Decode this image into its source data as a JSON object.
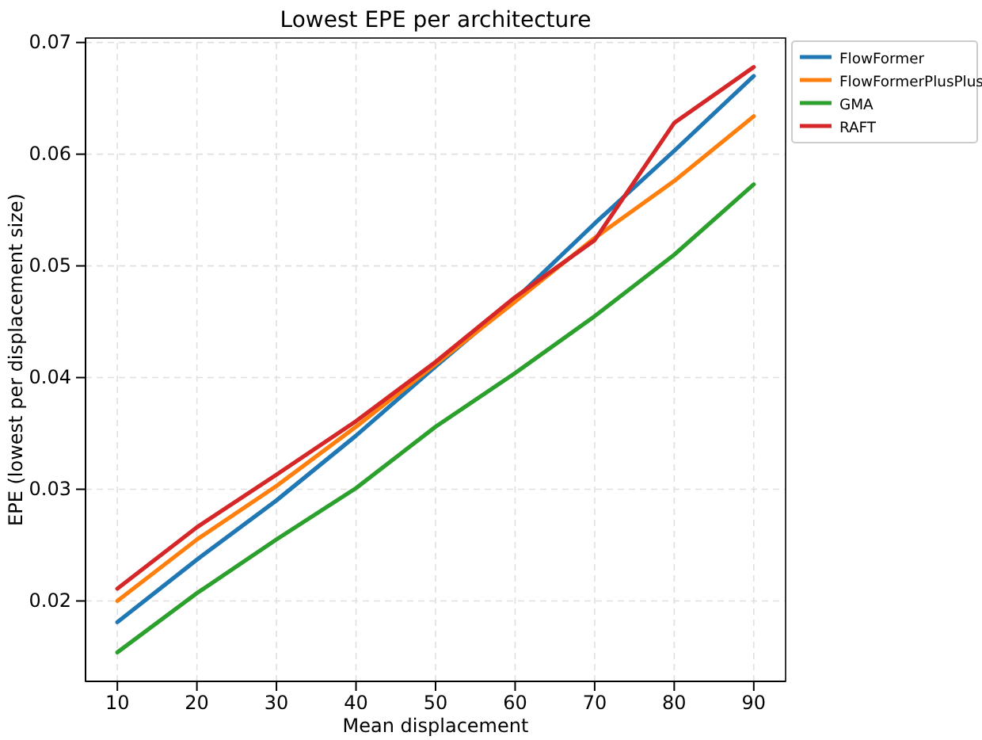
{
  "chart_data": {
    "type": "line",
    "title": "Lowest EPE per architecture",
    "xlabel": "Mean displacement",
    "ylabel": "EPE (lowest per displacement size)",
    "x": [
      10,
      20,
      30,
      40,
      50,
      60,
      70,
      80,
      90
    ],
    "series": [
      {
        "name": "FlowFormer",
        "color": "#1f77b4",
        "values": [
          0.0181,
          0.0237,
          0.029,
          0.0348,
          0.041,
          0.047,
          0.0538,
          0.0603,
          0.067
        ]
      },
      {
        "name": "FlowFormerPlusPlus",
        "color": "#ff7f0e",
        "values": [
          0.02,
          0.0255,
          0.0303,
          0.0356,
          0.0412,
          0.0468,
          0.0525,
          0.0576,
          0.0634
        ]
      },
      {
        "name": "GMA",
        "color": "#2ca02c",
        "values": [
          0.0154,
          0.0207,
          0.0255,
          0.0301,
          0.0356,
          0.0404,
          0.0455,
          0.051,
          0.0573
        ]
      },
      {
        "name": "RAFT",
        "color": "#d62728",
        "values": [
          0.0211,
          0.0266,
          0.0313,
          0.0361,
          0.0414,
          0.0472,
          0.0523,
          0.0628,
          0.0678
        ]
      }
    ],
    "xlim": [
      6,
      94
    ],
    "xticks": [
      10,
      20,
      30,
      40,
      50,
      60,
      70,
      80,
      90
    ],
    "ylim": [
      0.0128,
      0.0704
    ],
    "yticks": [
      0.02,
      0.03,
      0.04,
      0.05,
      0.06,
      0.07
    ],
    "grid": true,
    "legend": "top right",
    "line_style": "solid",
    "marker": "none"
  }
}
